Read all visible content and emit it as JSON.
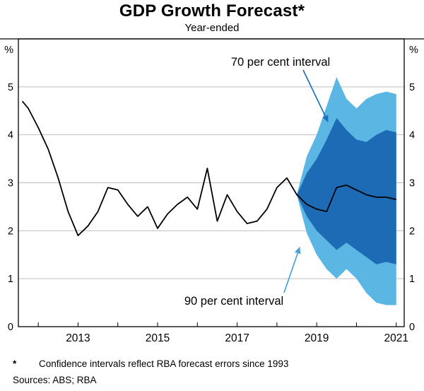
{
  "header": {
    "title": "GDP Growth Forecast*",
    "subtitle": "Year-ended"
  },
  "axes": {
    "unit_left": "%",
    "unit_right": "%"
  },
  "annotations": {
    "interval70": {
      "label": "70 per cent interval",
      "color": "#2170c0"
    },
    "interval90": {
      "label": "90 per cent interval",
      "color": "#4ba3da"
    }
  },
  "colors": {
    "band70": "#1d6bb4",
    "band90": "#5cb6e4",
    "line": "#000000",
    "grid": "#bfbfbf",
    "axis": "#000000"
  },
  "footer": {
    "marker": "*",
    "footnote": "Confidence intervals reflect RBA forecast errors since 1993",
    "sources": "Sources: ABS; RBA"
  },
  "chart_data": {
    "type": "line",
    "title": "GDP Growth Forecast*",
    "subtitle": "Year-ended",
    "ylabel": "%",
    "xlabel": "",
    "ylim": [
      0,
      6
    ],
    "xlim": [
      2011.5,
      2021.2
    ],
    "grid": true,
    "y_ticks": [
      0,
      1,
      2,
      3,
      4,
      5
    ],
    "x_ticks": [
      2013,
      2015,
      2017,
      2019,
      2021
    ],
    "year_ticks": [
      2012,
      2013,
      2014,
      2015,
      2016,
      2017,
      2018,
      2019,
      2020,
      2021
    ],
    "x_historical": [
      2011.6,
      2011.75,
      2012.0,
      2012.25,
      2012.5,
      2012.75,
      2013.0,
      2013.25,
      2013.5,
      2013.75,
      2014.0,
      2014.25,
      2014.5,
      2014.75,
      2015.0,
      2015.25,
      2015.5,
      2015.75,
      2016.0,
      2016.25,
      2016.5,
      2016.75,
      2017.0,
      2017.25,
      2017.5,
      2017.75,
      2018.0,
      2018.25,
      2018.5
    ],
    "historical": [
      4.7,
      4.55,
      4.15,
      3.7,
      3.1,
      2.4,
      1.9,
      2.1,
      2.4,
      2.9,
      2.85,
      2.55,
      2.3,
      2.5,
      2.05,
      2.35,
      2.55,
      2.7,
      2.45,
      3.3,
      2.2,
      2.75,
      2.4,
      2.15,
      2.2,
      2.45,
      2.9,
      3.1,
      2.75
    ],
    "x_forecast": [
      2018.5,
      2018.75,
      2019.0,
      2019.25,
      2019.5,
      2019.75,
      2020.0,
      2020.25,
      2020.5,
      2020.75,
      2021.0
    ],
    "central_forecast": [
      2.75,
      2.55,
      2.45,
      2.4,
      2.9,
      2.95,
      2.85,
      2.75,
      2.7,
      2.7,
      2.65
    ],
    "band70": {
      "upper": [
        2.75,
        3.2,
        3.5,
        3.9,
        4.35,
        4.1,
        3.9,
        3.85,
        4.0,
        4.1,
        4.05
      ],
      "lower": [
        2.75,
        2.3,
        2.0,
        1.8,
        1.6,
        1.75,
        1.6,
        1.45,
        1.3,
        1.35,
        1.3
      ]
    },
    "band90": {
      "upper": [
        2.75,
        3.55,
        4.0,
        4.6,
        5.2,
        4.75,
        4.55,
        4.75,
        4.85,
        4.9,
        4.85
      ],
      "lower": [
        2.75,
        1.95,
        1.5,
        1.2,
        1.0,
        1.2,
        1.0,
        0.7,
        0.5,
        0.45,
        0.45
      ]
    }
  }
}
